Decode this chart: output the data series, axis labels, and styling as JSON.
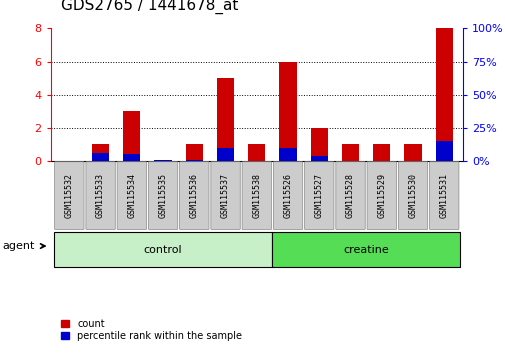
{
  "title": "GDS2765 / 1441678_at",
  "samples": [
    "GSM115532",
    "GSM115533",
    "GSM115534",
    "GSM115535",
    "GSM115536",
    "GSM115537",
    "GSM115538",
    "GSM115526",
    "GSM115527",
    "GSM115528",
    "GSM115529",
    "GSM115530",
    "GSM115531"
  ],
  "count_values": [
    0,
    1,
    3,
    0,
    1,
    5,
    1,
    6,
    2,
    1,
    1,
    1,
    8
  ],
  "percentile_values": [
    0,
    6,
    5,
    1,
    1,
    10,
    0,
    10,
    4,
    0,
    0,
    0,
    15
  ],
  "groups": [
    {
      "label": "control",
      "start": 0,
      "end": 7,
      "color": "#c8f0c8"
    },
    {
      "label": "creatine",
      "start": 7,
      "end": 13,
      "color": "#55dd55"
    }
  ],
  "ylim_left": [
    0,
    8
  ],
  "ylim_right": [
    0,
    100
  ],
  "yticks_left": [
    0,
    2,
    4,
    6,
    8
  ],
  "yticks_right": [
    0,
    25,
    50,
    75,
    100
  ],
  "bar_color_red": "#cc0000",
  "bar_color_blue": "#0000cc",
  "bar_width": 0.55,
  "tick_label_bg": "#cccccc",
  "agent_label": "agent",
  "legend_count": "count",
  "legend_percentile": "percentile rank within the sample",
  "title_fontsize": 11,
  "axis_fontsize": 8,
  "label_fontsize": 8,
  "tick_fontsize": 6
}
